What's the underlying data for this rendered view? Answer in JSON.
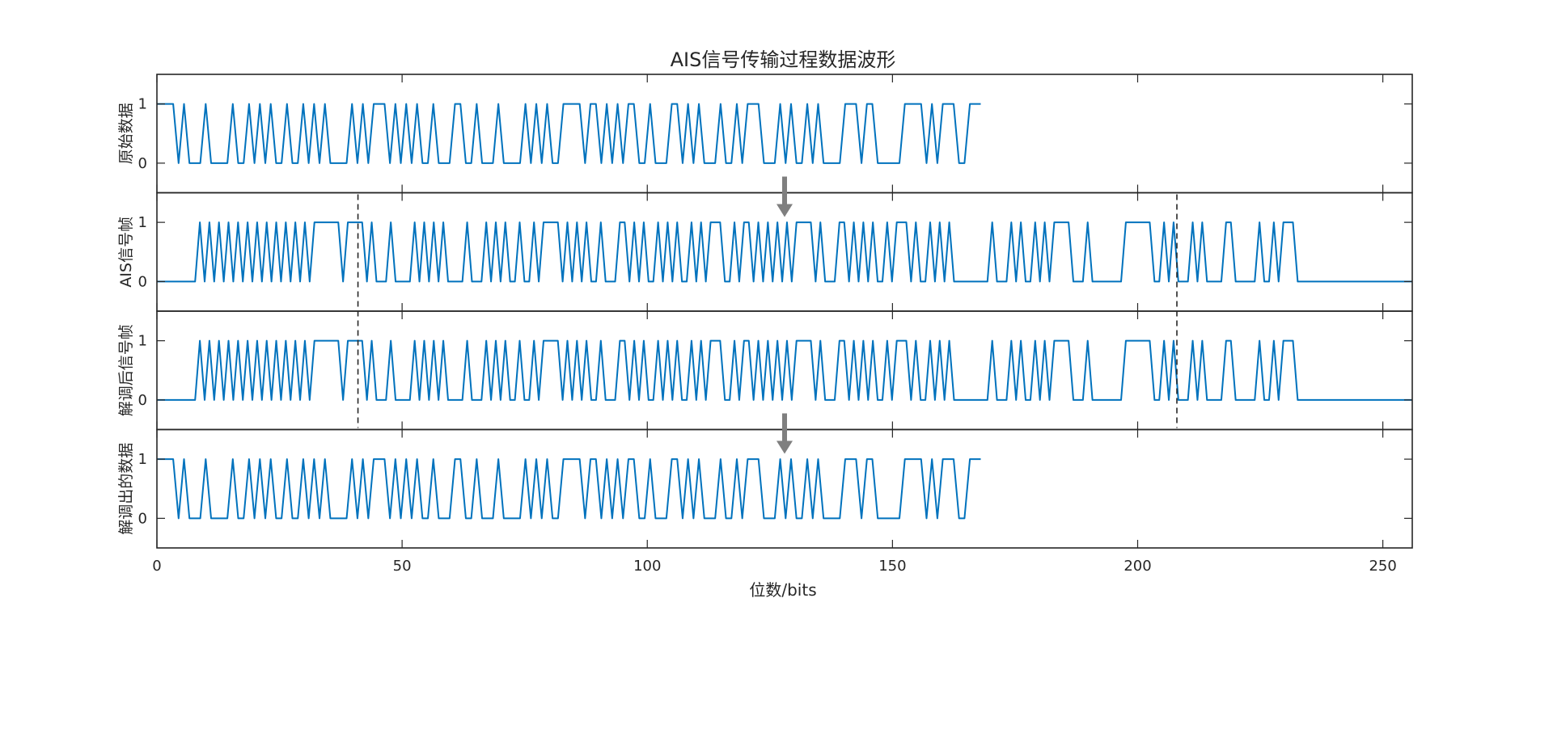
{
  "chart_data": {
    "type": "line",
    "title": "AIS信号传输过程数据波形",
    "xlabel": "位数/bits",
    "xlim": [
      0,
      256
    ],
    "xticks": [
      0,
      50,
      100,
      150,
      200,
      250
    ],
    "ylim": [
      -0.5,
      1.5
    ],
    "yticks": [
      0,
      1
    ],
    "grid": false,
    "line_color": "#0072BD",
    "frame_markers": [
      41,
      208
    ],
    "arrows_between_panels": [
      {
        "from": 0,
        "to": 1,
        "x": 128
      },
      {
        "from": 2,
        "to": 3,
        "x": 128
      }
    ],
    "subplots": [
      {
        "ylabel": "原始数据",
        "x_end": 168,
        "values": [
          1,
          1,
          1,
          1,
          0,
          1,
          0,
          0,
          0,
          1,
          0,
          0,
          0,
          0,
          1,
          0,
          0,
          1,
          0,
          1,
          0,
          1,
          0,
          0,
          1,
          0,
          0,
          1,
          0,
          1,
          0,
          1,
          0,
          0,
          0,
          0,
          1,
          0,
          1,
          0,
          1,
          1,
          1,
          0,
          1,
          0,
          1,
          0,
          1,
          0,
          0,
          1,
          0,
          0,
          0,
          1,
          1,
          0,
          0,
          1,
          0,
          0,
          0,
          1,
          0,
          0,
          0,
          0,
          1,
          0,
          1,
          0,
          1,
          0,
          0,
          1,
          1,
          1,
          1,
          0,
          1,
          1,
          0,
          1,
          0,
          1,
          0,
          1,
          1,
          0,
          0,
          1,
          0,
          0,
          0,
          1,
          1,
          0,
          1,
          0,
          1,
          0,
          0,
          0,
          1,
          0,
          0,
          1,
          0,
          1,
          1,
          1,
          0,
          0,
          0,
          1,
          0,
          1,
          0,
          0,
          1,
          0,
          1,
          0,
          0,
          0,
          0,
          1,
          1,
          1,
          0,
          1,
          1,
          0,
          0,
          0,
          0,
          0,
          1,
          1,
          1,
          1,
          0,
          1,
          0,
          1,
          1,
          1,
          0,
          0,
          1,
          1,
          1
        ]
      },
      {
        "ylabel": "AIS信号帧",
        "x_end": 256,
        "values": [
          0,
          0,
          0,
          0,
          0,
          0,
          0,
          0,
          0,
          1,
          0,
          1,
          0,
          1,
          0,
          1,
          0,
          1,
          0,
          1,
          0,
          1,
          0,
          1,
          0,
          1,
          0,
          1,
          0,
          1,
          0,
          1,
          0,
          1,
          1,
          1,
          1,
          1,
          1,
          0,
          1,
          1,
          1,
          1,
          0,
          1,
          0,
          0,
          0,
          1,
          0,
          0,
          0,
          0,
          1,
          0,
          1,
          0,
          1,
          0,
          1,
          0,
          0,
          0,
          0,
          1,
          0,
          0,
          0,
          1,
          0,
          1,
          0,
          1,
          0,
          0,
          1,
          0,
          0,
          1,
          0,
          1,
          1,
          1,
          1,
          0,
          1,
          0,
          1,
          0,
          1,
          0,
          0,
          1,
          0,
          0,
          0,
          1,
          1,
          0,
          1,
          0,
          1,
          0,
          0,
          1,
          0,
          1,
          0,
          1,
          0,
          0,
          1,
          0,
          1,
          0,
          1,
          1,
          1,
          0,
          0,
          1,
          0,
          1,
          1,
          0,
          1,
          0,
          1,
          0,
          1,
          0,
          1,
          0,
          1,
          1,
          1,
          1,
          0,
          1,
          0,
          0,
          0,
          1,
          1,
          0,
          1,
          0,
          1,
          0,
          1,
          0,
          0,
          1,
          0,
          1,
          1,
          1,
          0,
          1,
          0,
          0,
          1,
          0,
          1,
          0,
          1,
          0,
          0,
          0,
          0,
          0,
          0,
          0,
          0,
          1,
          0,
          0,
          0,
          1,
          0,
          1,
          0,
          0,
          1,
          0,
          1,
          0,
          1,
          1,
          1,
          1,
          0,
          0,
          0,
          1,
          0,
          0,
          0,
          0,
          0,
          0,
          0,
          1,
          1,
          1,
          1,
          1,
          1,
          0,
          0,
          1,
          0,
          1,
          0,
          0,
          0,
          1,
          0,
          1,
          0,
          0,
          0,
          0,
          1,
          1,
          0,
          0,
          0,
          0,
          0,
          1,
          0,
          0,
          1,
          0,
          1,
          1,
          1,
          0,
          0,
          0,
          0,
          0,
          0,
          0,
          0,
          0,
          0,
          0,
          0,
          0,
          0,
          0,
          0,
          0,
          0,
          0,
          0,
          0,
          0,
          0,
          0,
          0
        ]
      },
      {
        "ylabel": "解调后信号帧",
        "x_end": 256,
        "values": [
          0,
          0,
          0,
          0,
          0,
          0,
          0,
          0,
          0,
          1,
          0,
          1,
          0,
          1,
          0,
          1,
          0,
          1,
          0,
          1,
          0,
          1,
          0,
          1,
          0,
          1,
          0,
          1,
          0,
          1,
          0,
          1,
          0,
          1,
          1,
          1,
          1,
          1,
          1,
          0,
          1,
          1,
          1,
          1,
          0,
          1,
          0,
          0,
          0,
          1,
          0,
          0,
          0,
          0,
          1,
          0,
          1,
          0,
          1,
          0,
          1,
          0,
          0,
          0,
          0,
          1,
          0,
          0,
          0,
          1,
          0,
          1,
          0,
          1,
          0,
          0,
          1,
          0,
          0,
          1,
          0,
          1,
          1,
          1,
          1,
          0,
          1,
          0,
          1,
          0,
          1,
          0,
          0,
          1,
          0,
          0,
          0,
          1,
          1,
          0,
          1,
          0,
          1,
          0,
          0,
          1,
          0,
          1,
          0,
          1,
          0,
          0,
          1,
          0,
          1,
          0,
          1,
          1,
          1,
          0,
          0,
          1,
          0,
          1,
          1,
          0,
          1,
          0,
          1,
          0,
          1,
          0,
          1,
          0,
          1,
          1,
          1,
          1,
          0,
          1,
          0,
          0,
          0,
          1,
          1,
          0,
          1,
          0,
          1,
          0,
          1,
          0,
          0,
          1,
          0,
          1,
          1,
          1,
          0,
          1,
          0,
          0,
          1,
          0,
          1,
          0,
          1,
          0,
          0,
          0,
          0,
          0,
          0,
          0,
          0,
          1,
          0,
          0,
          0,
          1,
          0,
          1,
          0,
          0,
          1,
          0,
          1,
          0,
          1,
          1,
          1,
          1,
          0,
          0,
          0,
          1,
          0,
          0,
          0,
          0,
          0,
          0,
          0,
          1,
          1,
          1,
          1,
          1,
          1,
          0,
          0,
          1,
          0,
          1,
          0,
          0,
          0,
          1,
          0,
          1,
          0,
          0,
          0,
          0,
          1,
          1,
          0,
          0,
          0,
          0,
          0,
          1,
          0,
          0,
          1,
          0,
          1,
          1,
          1,
          0,
          0,
          0,
          0,
          0,
          0,
          0,
          0,
          0,
          0,
          0,
          0,
          0,
          0,
          0,
          0,
          0,
          0,
          0,
          0,
          0,
          0,
          0,
          0,
          0
        ]
      },
      {
        "ylabel": "解调出的数据",
        "x_end": 168,
        "values": [
          1,
          1,
          1,
          1,
          0,
          1,
          0,
          0,
          0,
          1,
          0,
          0,
          0,
          0,
          1,
          0,
          0,
          1,
          0,
          1,
          0,
          1,
          0,
          0,
          1,
          0,
          0,
          1,
          0,
          1,
          0,
          1,
          0,
          0,
          0,
          0,
          1,
          0,
          1,
          0,
          1,
          1,
          1,
          0,
          1,
          0,
          1,
          0,
          1,
          0,
          0,
          1,
          0,
          0,
          0,
          1,
          1,
          0,
          0,
          1,
          0,
          0,
          0,
          1,
          0,
          0,
          0,
          0,
          1,
          0,
          1,
          0,
          1,
          0,
          0,
          1,
          1,
          1,
          1,
          0,
          1,
          1,
          0,
          1,
          0,
          1,
          0,
          1,
          1,
          0,
          0,
          1,
          0,
          0,
          0,
          1,
          1,
          0,
          1,
          0,
          1,
          0,
          0,
          0,
          1,
          0,
          0,
          1,
          0,
          1,
          1,
          1,
          0,
          0,
          0,
          1,
          0,
          1,
          0,
          0,
          1,
          0,
          1,
          0,
          0,
          0,
          0,
          1,
          1,
          1,
          0,
          1,
          1,
          0,
          0,
          0,
          0,
          0,
          1,
          1,
          1,
          1,
          0,
          1,
          0,
          1,
          1,
          1,
          0,
          0,
          1,
          1,
          1
        ]
      }
    ]
  }
}
